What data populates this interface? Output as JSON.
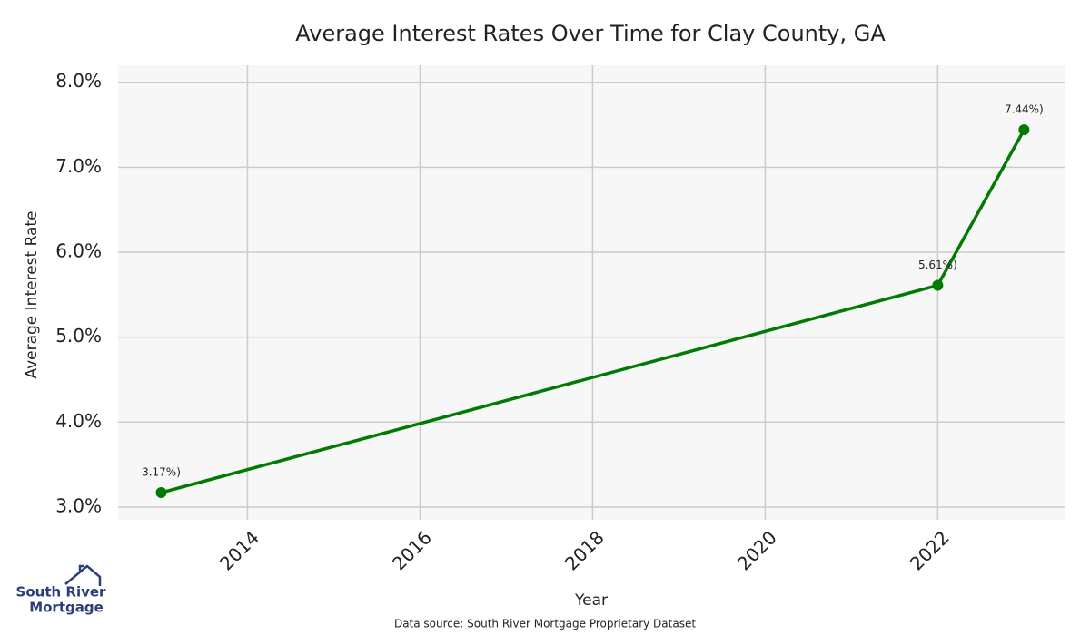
{
  "chart_data": {
    "type": "line",
    "title": "Average Interest Rates Over Time for Clay County, GA",
    "x_label": "Year",
    "y_label": "Average Interest Rate",
    "x": [
      2013,
      2022,
      2023
    ],
    "series": [
      {
        "name": "Average Interest Rate",
        "color": "#007a00",
        "values": [
          3.17,
          5.61,
          7.44
        ],
        "value_labels": [
          "3.17%)",
          "5.61%)",
          "7.44%)"
        ]
      }
    ],
    "xlim": [
      2012.5,
      2023.47
    ],
    "ylim": [
      2.85,
      8.2
    ],
    "xticks": [
      2014,
      2016,
      2018,
      2020,
      2022
    ],
    "yticks": [
      {
        "value": 3,
        "label": "3.0%"
      },
      {
        "value": 4,
        "label": "4.0%"
      },
      {
        "value": 5,
        "label": "5.0%"
      },
      {
        "value": 6,
        "label": "6.0%"
      },
      {
        "value": 7,
        "label": "7.0%"
      },
      {
        "value": 8,
        "label": "8.0%"
      }
    ],
    "grid": true,
    "source": "Data source: South River Mortgage Proprietary Dataset",
    "logo": {
      "line1": "South River",
      "line2": "Mortgage"
    }
  }
}
